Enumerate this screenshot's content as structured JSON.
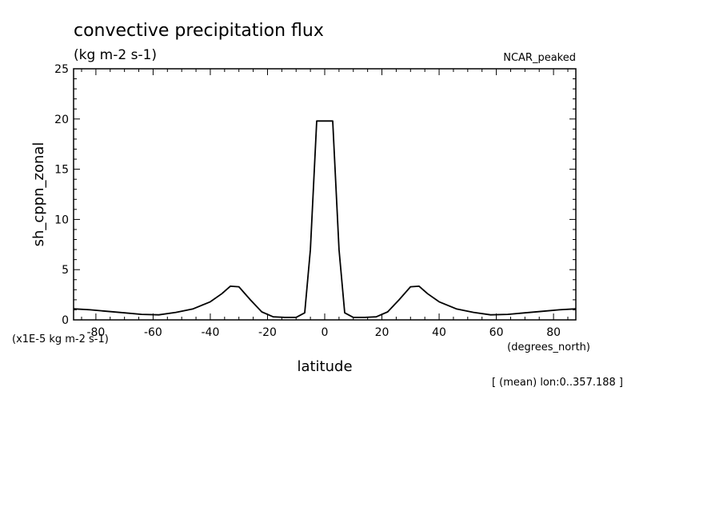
{
  "chart_data": {
    "type": "line",
    "title": "convective precipitation flux",
    "units": "(kg m-2 s-1)",
    "experiment_label": "NCAR_peaked",
    "xlabel": "latitude",
    "x_units": "(degrees_north)",
    "ylabel": "sh_cppn_zonal",
    "y_scale_note": "(x1E-5 kg m-2 s-1)",
    "footnote": "[ (mean) lon:0..357.188 ]",
    "xlim": [
      -87.8,
      87.8
    ],
    "ylim": [
      0,
      25
    ],
    "x_ticks": [
      -80,
      -60,
      -40,
      -20,
      0,
      20,
      40,
      60,
      80
    ],
    "x_tick_labels": [
      "-80",
      "-60",
      "-40",
      "-20",
      "0",
      "20",
      "40",
      "60",
      "80"
    ],
    "y_ticks": [
      0,
      5,
      10,
      15,
      20,
      25
    ],
    "y_tick_labels": [
      "0",
      "5",
      "10",
      "15",
      "20",
      "25"
    ],
    "grid": false,
    "line_color": "#000000",
    "series": [
      {
        "x": [
          -87.8,
          -82,
          -76,
          -70,
          -64,
          -58,
          -52,
          -46,
          -40,
          -36,
          -33,
          -30,
          -26,
          -22,
          -18,
          -14,
          -10,
          -7,
          -5,
          -2.8,
          0,
          1.4,
          2.8,
          5,
          7,
          10,
          14,
          18,
          22,
          26,
          30,
          33,
          36,
          40,
          46,
          52,
          58,
          64,
          70,
          76,
          82,
          87.8
        ],
        "y": [
          1.1,
          1.0,
          0.85,
          0.7,
          0.55,
          0.5,
          0.75,
          1.1,
          1.8,
          2.6,
          3.35,
          3.3,
          2.0,
          0.8,
          0.3,
          0.25,
          0.25,
          0.7,
          7.0,
          19.8,
          19.8,
          19.8,
          19.8,
          7.0,
          0.7,
          0.25,
          0.25,
          0.3,
          0.8,
          2.0,
          3.3,
          3.35,
          2.6,
          1.8,
          1.1,
          0.75,
          0.5,
          0.55,
          0.7,
          0.85,
          1.0,
          1.1
        ]
      }
    ]
  }
}
